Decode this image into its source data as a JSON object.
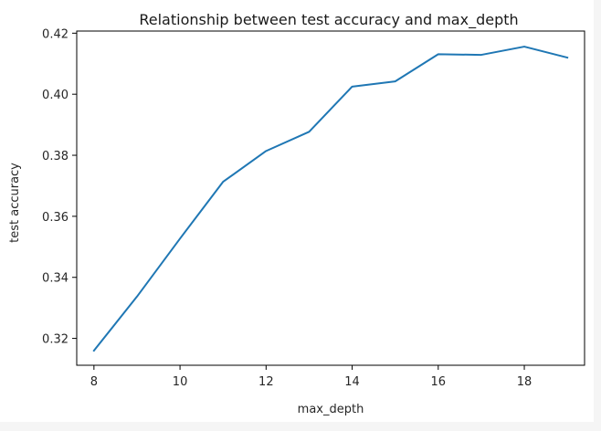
{
  "chart_data": {
    "type": "line",
    "title": "Relationship between test accuracy and max_depth",
    "xlabel": "max_depth",
    "ylabel": "test accuracy",
    "xlim": [
      7.6,
      19.4
    ],
    "ylim": [
      0.3112,
      0.4207
    ],
    "xticks": [
      8,
      10,
      12,
      14,
      16,
      18
    ],
    "xtick_labels": [
      "8",
      "10",
      "12",
      "14",
      "16",
      "18"
    ],
    "yticks": [
      0.32,
      0.34,
      0.36,
      0.38,
      0.4,
      0.42
    ],
    "ytick_labels": [
      "0.32",
      "0.34",
      "0.36",
      "0.38",
      "0.40",
      "0.42"
    ],
    "grid": false,
    "series": [
      {
        "color": "#1f77b4",
        "x": [
          8,
          9,
          10,
          11,
          12,
          13,
          14,
          15,
          16,
          17,
          18,
          19
        ],
        "y": [
          0.316,
          0.3337,
          0.3527,
          0.3713,
          0.3814,
          0.3877,
          0.4025,
          0.4042,
          0.4131,
          0.4129,
          0.4156,
          0.412
        ]
      }
    ]
  }
}
